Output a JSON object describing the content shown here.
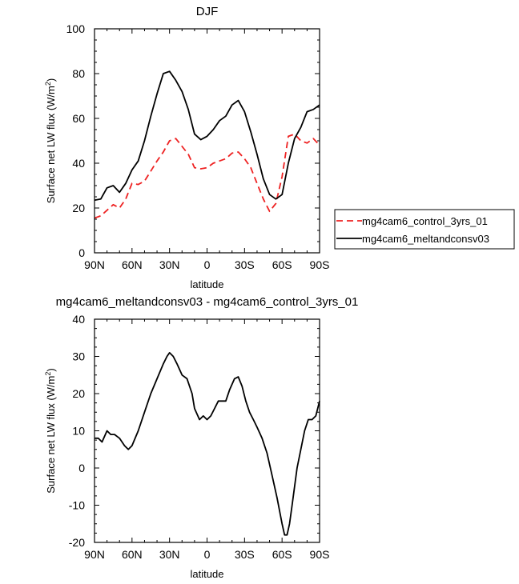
{
  "chart_data": [
    {
      "type": "line",
      "title": "DJF",
      "xlabel": "latitude",
      "ylabel": "Surface net LW flux (W/m",
      "ylabel_sup": "2",
      "ylabel_end": ")",
      "xlim": [
        90,
        -90
      ],
      "ylim": [
        0,
        100
      ],
      "x_ticks": [
        {
          "value": 90,
          "label": "90N"
        },
        {
          "value": 60,
          "label": "60N"
        },
        {
          "value": 30,
          "label": "30N"
        },
        {
          "value": 0,
          "label": "0"
        },
        {
          "value": -30,
          "label": "30S"
        },
        {
          "value": -60,
          "label": "60S"
        },
        {
          "value": -90,
          "label": "90S"
        }
      ],
      "y_ticks": [
        0,
        20,
        40,
        60,
        80,
        100
      ],
      "legend_position": "right",
      "series": [
        {
          "name": "mg4cam6_control_3yrs_01",
          "color": "#ee2222",
          "dash": "8,5",
          "x": [
            90,
            85,
            80,
            75,
            70,
            65,
            60,
            55,
            50,
            45,
            40,
            35,
            30,
            25,
            20,
            15,
            10,
            5,
            0,
            -5,
            -10,
            -15,
            -20,
            -25,
            -30,
            -35,
            -40,
            -45,
            -50,
            -55,
            -60,
            -65,
            -70,
            -75,
            -80,
            -85,
            -90
          ],
          "y": [
            15.5,
            16.5,
            19,
            21.5,
            20,
            24,
            31,
            30.5,
            32,
            36.5,
            41,
            45,
            50,
            51,
            47.5,
            44,
            38,
            37.5,
            38,
            40,
            41,
            42,
            44.5,
            45,
            42,
            38,
            31,
            24,
            18.5,
            22,
            34,
            52,
            53,
            50,
            49,
            51,
            48
          ]
        },
        {
          "name": "mg4cam6_meltandconsv03",
          "color": "#000000",
          "dash": "",
          "x": [
            90,
            85,
            80,
            75,
            70,
            65,
            60,
            55,
            50,
            45,
            40,
            35,
            30,
            25,
            20,
            15,
            10,
            5,
            0,
            -5,
            -10,
            -15,
            -20,
            -25,
            -30,
            -35,
            -40,
            -45,
            -50,
            -55,
            -60,
            -65,
            -70,
            -75,
            -80,
            -85,
            -90
          ],
          "y": [
            23.5,
            24,
            29,
            30,
            27,
            31,
            37,
            41,
            50,
            61,
            71,
            80,
            81,
            77,
            72,
            64,
            53,
            50.5,
            52,
            55,
            59,
            61,
            66,
            68,
            63,
            54,
            44,
            33,
            26,
            24,
            26,
            40,
            51,
            56,
            63,
            64,
            66
          ]
        }
      ]
    },
    {
      "type": "line",
      "title": "mg4cam6_meltandconsv03 - mg4cam6_control_3yrs_01",
      "xlabel": "latitude",
      "ylabel": "Surface net LW flux (W/m",
      "ylabel_sup": "2",
      "ylabel_end": ")",
      "xlim": [
        90,
        -90
      ],
      "ylim": [
        -20,
        40
      ],
      "x_ticks": [
        {
          "value": 90,
          "label": "90N"
        },
        {
          "value": 60,
          "label": "60N"
        },
        {
          "value": 30,
          "label": "30N"
        },
        {
          "value": 0,
          "label": "0"
        },
        {
          "value": -30,
          "label": "30S"
        },
        {
          "value": -60,
          "label": "60S"
        },
        {
          "value": -90,
          "label": "90S"
        }
      ],
      "y_ticks": [
        -20,
        -10,
        0,
        10,
        20,
        30,
        40
      ],
      "series": [
        {
          "color": "#000000",
          "dash": "",
          "x": [
            90,
            87,
            84,
            80,
            77,
            74,
            70,
            66,
            63,
            60,
            55,
            50,
            45,
            40,
            35,
            32,
            30,
            27,
            24,
            20,
            16,
            12,
            10,
            6,
            3,
            0,
            -3,
            -6,
            -9,
            -12,
            -15,
            -18,
            -22,
            -25,
            -28,
            -31,
            -34,
            -37,
            -40,
            -44,
            -48,
            -52,
            -56,
            -60,
            -62,
            -64,
            -66,
            -68,
            -70,
            -72,
            -75,
            -78,
            -81,
            -84,
            -87,
            -90
          ],
          "y": [
            8,
            8,
            7,
            10,
            9,
            9,
            8,
            6,
            5,
            6,
            10,
            15,
            20,
            24,
            28,
            30,
            31,
            30,
            28,
            25,
            24,
            20,
            16,
            13,
            14,
            13,
            14,
            16,
            18,
            18,
            18,
            21,
            24,
            24.5,
            22,
            18,
            15,
            13,
            11,
            8,
            4,
            -2,
            -8,
            -15,
            -18,
            -18,
            -15,
            -10,
            -5,
            0,
            5,
            10,
            13,
            13,
            14,
            18
          ]
        }
      ]
    }
  ]
}
